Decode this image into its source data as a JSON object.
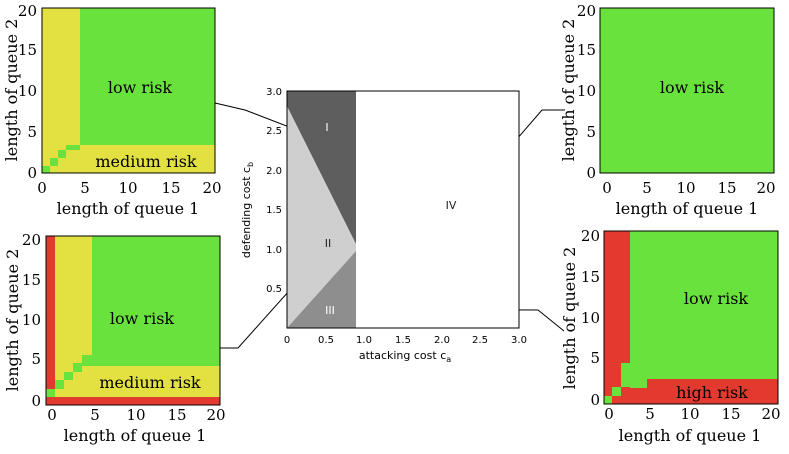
{
  "colors": {
    "green": "#6ae23e",
    "yellow": "#e3e142",
    "red": "#e33a2f",
    "region_I": "#5e5e5e",
    "region_II": "#cfcfcf",
    "region_III": "#8e8e8e",
    "region_IV": "#ffffff"
  },
  "chart_data": [
    {
      "id": "top-left",
      "type": "heatmap",
      "xlabel": "length of queue 1",
      "ylabel": "length of queue 2",
      "xlim": [
        0,
        20
      ],
      "ylim": [
        0,
        20
      ],
      "xticks": [
        "0",
        "5",
        "10",
        "15",
        "20"
      ],
      "yticks": [
        "0",
        "5",
        "10",
        "15",
        "20"
      ],
      "regions": [
        {
          "name": "low risk",
          "color": "green"
        },
        {
          "name": "medium risk",
          "color": "yellow"
        }
      ],
      "annotations": [
        {
          "text": "low risk",
          "x": 11,
          "y": 11
        },
        {
          "text": "medium risk",
          "x": 12.5,
          "y": 1.5
        }
      ],
      "grid": false
    },
    {
      "id": "bottom-left",
      "type": "heatmap",
      "xlabel": "length of queue 1",
      "ylabel": "length of queue 2",
      "xlim": [
        0,
        20
      ],
      "ylim": [
        0,
        20
      ],
      "xticks": [
        "0",
        "5",
        "10",
        "15",
        "20"
      ],
      "yticks": [
        "0",
        "5",
        "10",
        "15",
        "20"
      ],
      "regions": [
        {
          "name": "low risk",
          "color": "green"
        },
        {
          "name": "medium risk",
          "color": "yellow"
        },
        {
          "name": "high risk",
          "color": "red"
        }
      ],
      "annotations": [
        {
          "text": "low risk",
          "x": 12,
          "y": 11
        },
        {
          "text": "medium risk",
          "x": 12.5,
          "y": 2
        }
      ],
      "grid": false
    },
    {
      "id": "center",
      "type": "area",
      "xlabel": "attacking cost c",
      "xlabel_sub": "a",
      "ylabel": "defending cost c",
      "ylabel_sub": "b",
      "xlim": [
        0,
        3.0
      ],
      "ylim": [
        0,
        3.0
      ],
      "xticks": [
        "0",
        "0.5",
        "1.0",
        "1.5",
        "2.0",
        "2.5",
        "3.0"
      ],
      "yticks": [
        "0.5",
        "1.0",
        "1.5",
        "2.0",
        "2.5",
        "3.0"
      ],
      "region_labels": [
        {
          "text": "I",
          "x": 0.52,
          "y": 2.5
        },
        {
          "text": "II",
          "x": 0.53,
          "y": 1.07
        },
        {
          "text": "III",
          "x": 0.55,
          "y": 0.2
        },
        {
          "text": "IV",
          "x": 2.1,
          "y": 1.55
        }
      ],
      "boundaries": {
        "x_cut": 0.9,
        "upper_line": [
          [
            0,
            2.8
          ],
          [
            0.9,
            0.9
          ]
        ],
        "lower_line": [
          [
            0,
            0
          ],
          [
            0.9,
            0.85
          ]
        ]
      },
      "grid": false
    },
    {
      "id": "top-right",
      "type": "heatmap",
      "xlabel": "length of queue 1",
      "ylabel": "length of queue 2",
      "xlim": [
        0,
        20
      ],
      "ylim": [
        0,
        20
      ],
      "xticks": [
        "0",
        "5",
        "10",
        "15",
        "20"
      ],
      "yticks": [
        "0",
        "5",
        "10",
        "15",
        "20"
      ],
      "regions": [
        {
          "name": "low risk",
          "color": "green"
        }
      ],
      "annotations": [
        {
          "text": "low risk",
          "x": 10,
          "y": 11
        }
      ],
      "grid": false
    },
    {
      "id": "bottom-right",
      "type": "heatmap",
      "xlabel": "length of queue 1",
      "ylabel": "length of queue 2",
      "xlim": [
        0,
        20
      ],
      "ylim": [
        0,
        20
      ],
      "xticks": [
        "0",
        "5",
        "10",
        "15",
        "20"
      ],
      "yticks": [
        "0",
        "5",
        "10",
        "15",
        "20"
      ],
      "regions": [
        {
          "name": "low risk",
          "color": "green"
        },
        {
          "name": "high risk",
          "color": "red"
        }
      ],
      "annotations": [
        {
          "text": "low risk",
          "x": 13.5,
          "y": 13
        },
        {
          "text": "high risk",
          "x": 13,
          "y": 1.5
        }
      ],
      "grid": false
    }
  ]
}
